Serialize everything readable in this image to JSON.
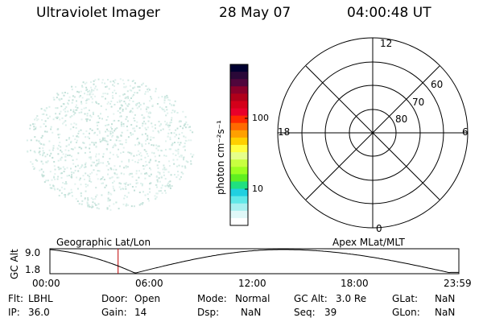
{
  "header": {
    "instrument": "Ultraviolet Imager",
    "date": "28 May 07",
    "time": "04:00:48 UT"
  },
  "colorbar": {
    "label": "photon cm⁻²s⁻¹",
    "ticks": [
      "100",
      "10"
    ],
    "colors": [
      "#000030",
      "#2a0838",
      "#50063c",
      "#8a002a",
      "#b0001a",
      "#d4001a",
      "#e8002a",
      "#ff2a00",
      "#ff6a00",
      "#ffa000",
      "#ffd000",
      "#ffff40",
      "#e6ff8a",
      "#c8ff40",
      "#9cff20",
      "#60ef20",
      "#20e080",
      "#20d0e0",
      "#60e8e8",
      "#a8f0f0",
      "#e0f8f8",
      "#ffffff"
    ]
  },
  "polar": {
    "mlt_labels": {
      "top": "12",
      "left": "18",
      "right": "6",
      "bottom": "0"
    },
    "lat_labels": [
      "60",
      "70",
      "80"
    ]
  },
  "timeline": {
    "left_title": "Geographic Lat/Lon",
    "right_title": "Apex MLat/MLT",
    "y_axis_label": "GC Alt",
    "y_ticks": [
      "9.0",
      "1.8"
    ],
    "x_ticks": [
      "00:00",
      "06:00",
      "12:00",
      "18:00",
      "23:59"
    ],
    "marker_time": "04:00",
    "marker_color": "#c00000"
  },
  "info": {
    "flt_label": "Flt:",
    "flt_value": "LBHL",
    "ip_label": "IP:",
    "ip_value": "36.0",
    "door_label": "Door:",
    "door_value": "Open",
    "gain_label": "Gain:",
    "gain_value": "14",
    "mode_label": "Mode:",
    "mode_value": "Normal",
    "dsp_label": "Dsp:",
    "dsp_value": "NaN",
    "gcalt_label": "GC Alt:",
    "gcalt_value": "3.0 Re",
    "seq_label": "Seq:",
    "seq_value": "39",
    "glat_label": "GLat:",
    "glat_value": "NaN",
    "glon_label": "GLon:",
    "glon_value": "NaN"
  }
}
